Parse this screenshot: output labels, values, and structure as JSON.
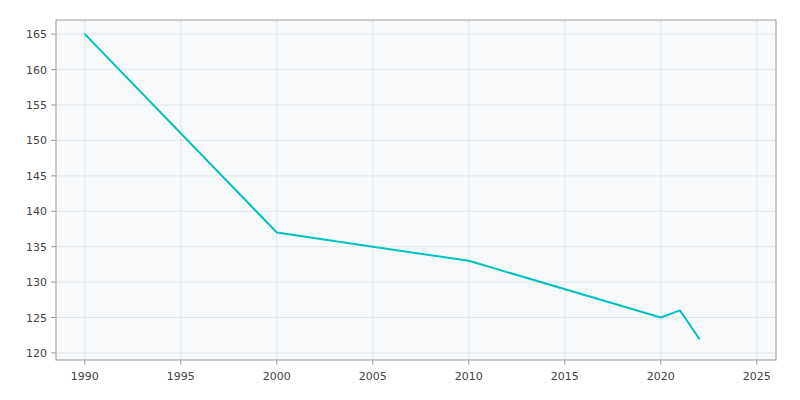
{
  "chart_data": {
    "type": "line",
    "x": [
      1990,
      2000,
      2005,
      2010,
      2020,
      2021,
      2022
    ],
    "values": [
      165,
      137,
      135,
      133,
      125,
      126,
      122
    ],
    "color": "#00c0c0",
    "xlim": [
      1988.5,
      2026
    ],
    "ylim": [
      119,
      167
    ],
    "xticks": [
      1990,
      1995,
      2000,
      2005,
      2010,
      2015,
      2020,
      2025
    ],
    "yticks": [
      120,
      125,
      130,
      135,
      140,
      145,
      150,
      155,
      160,
      165
    ],
    "grid": true
  }
}
